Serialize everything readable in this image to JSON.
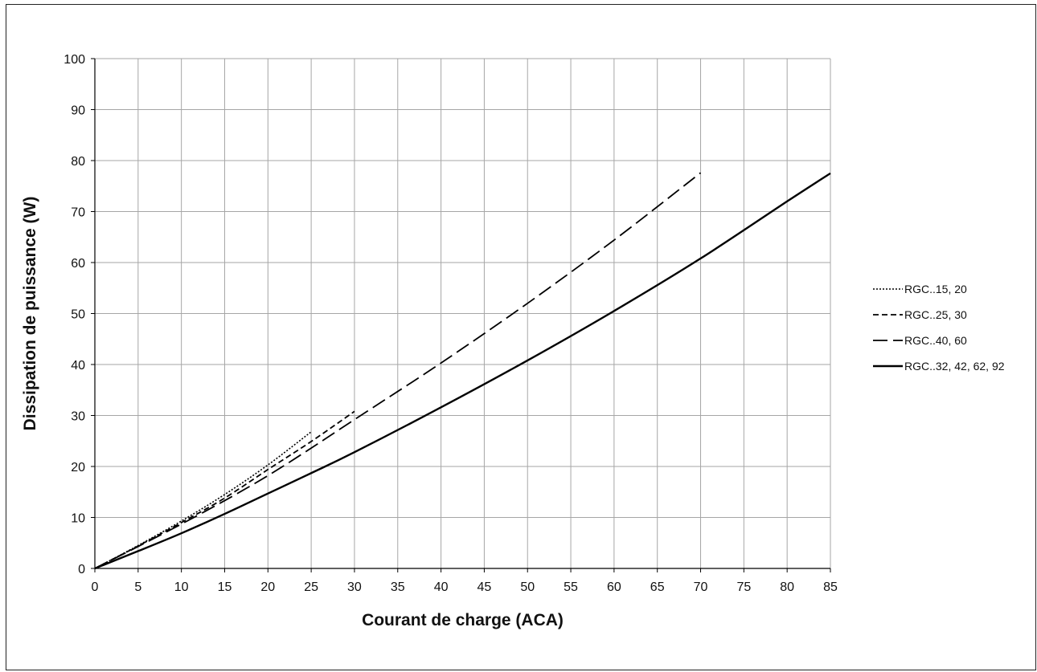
{
  "chart_data": {
    "type": "line",
    "title": "",
    "xlabel": "Courant de charge (ACA)",
    "ylabel": "Dissipation de puissance (W)",
    "xlim": [
      0,
      85
    ],
    "ylim": [
      0,
      100
    ],
    "x_ticks": [
      0,
      5,
      10,
      15,
      20,
      25,
      30,
      35,
      40,
      45,
      50,
      55,
      60,
      65,
      70,
      75,
      80,
      85
    ],
    "y_ticks": [
      0,
      10,
      20,
      30,
      40,
      50,
      60,
      70,
      80,
      90,
      100
    ],
    "grid": true,
    "legend_position": "right",
    "colors": {
      "line": "#000000",
      "grid": "#a6a6a6",
      "axis": "#000000"
    },
    "series": [
      {
        "name": "RGC..15, 20",
        "style": "dotted",
        "points": [
          [
            0,
            0
          ],
          [
            5,
            4.5
          ],
          [
            10,
            9.3
          ],
          [
            15,
            14.5
          ],
          [
            20,
            20.3
          ],
          [
            25,
            26.8
          ]
        ]
      },
      {
        "name": "RGC..25, 30",
        "style": "short-dash",
        "points": [
          [
            0,
            0
          ],
          [
            5,
            4.4
          ],
          [
            10,
            9
          ],
          [
            15,
            13.8
          ],
          [
            20,
            19.4
          ],
          [
            25,
            24.9
          ],
          [
            30,
            30.8
          ]
        ]
      },
      {
        "name": "RGC..40, 60",
        "style": "long-dash",
        "points": [
          [
            0,
            0
          ],
          [
            5,
            4.3
          ],
          [
            10,
            8.7
          ],
          [
            15,
            13.3
          ],
          [
            20,
            18.2
          ],
          [
            25,
            23.6
          ],
          [
            30,
            29.2
          ],
          [
            40,
            40.3
          ],
          [
            50,
            52
          ],
          [
            60,
            64.4
          ],
          [
            70,
            77.6
          ]
        ]
      },
      {
        "name": "RGC..32, 42, 62, 92",
        "style": "solid",
        "points": [
          [
            0,
            0
          ],
          [
            5,
            3.4
          ],
          [
            10,
            6.9
          ],
          [
            15,
            10.7
          ],
          [
            20,
            14.7
          ],
          [
            25,
            18.7
          ],
          [
            30,
            22.8
          ],
          [
            40,
            31.6
          ],
          [
            50,
            40.8
          ],
          [
            60,
            50.5
          ],
          [
            70,
            60.8
          ],
          [
            80,
            72
          ],
          [
            85,
            77.5
          ]
        ]
      }
    ]
  }
}
